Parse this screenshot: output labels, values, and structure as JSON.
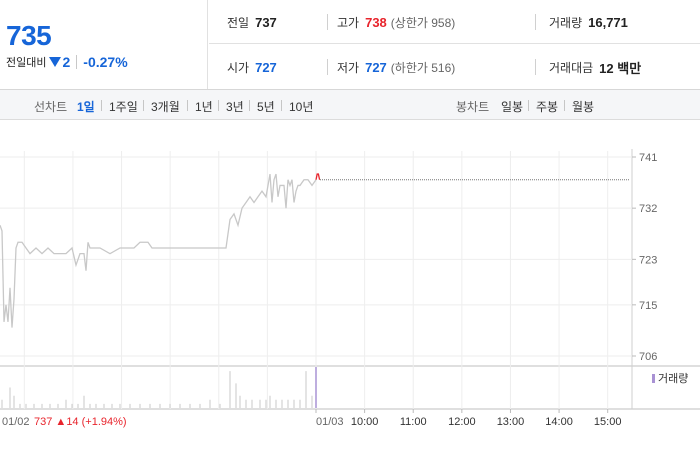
{
  "quote": {
    "price": "735",
    "change_label": "전일대비",
    "change_amount": "2",
    "change_percent": "-0.27%",
    "stats": {
      "prev_close": {
        "label": "전일",
        "value": "737"
      },
      "high": {
        "label": "고가",
        "value": "738",
        "sub": "(상한가 958)"
      },
      "volume": {
        "label": "거래량",
        "value": "16,771"
      },
      "open": {
        "label": "시가",
        "value": "727"
      },
      "low": {
        "label": "저가",
        "value": "727",
        "sub": "(하한가 516)"
      },
      "turnover": {
        "label": "거래대금",
        "value": "12 백만"
      }
    }
  },
  "toolbar": {
    "line_label": "선차트",
    "line_periods": [
      "1일",
      "1주일",
      "3개월",
      "1년",
      "3년",
      "5년",
      "10년"
    ],
    "active_period": "1일",
    "candle_label": "봉차트",
    "candle_periods": [
      "일봉",
      "주봉",
      "월봉"
    ]
  },
  "colors": {
    "up": "#e8242c",
    "down": "#1665d8",
    "line": "#c8c8c8",
    "volume": "#c8c8c8",
    "volume_last": "#a992d4"
  },
  "chart_data": {
    "type": "line",
    "y_ticks": [
      "741",
      "732",
      "723",
      "715",
      "706"
    ],
    "ylim": [
      706,
      741
    ],
    "x_ticks": [
      "01/03",
      "10:00",
      "11:00",
      "12:00",
      "13:00",
      "14:00",
      "15:00"
    ],
    "prev_day_label": "01/02",
    "prev_day_summary": {
      "close": "737",
      "arrow": "▲",
      "change": "14",
      "pct": "(+1.94%)"
    },
    "volume_legend": "거래량",
    "prev_day_series": [
      [
        0,
        729
      ],
      [
        2,
        728
      ],
      [
        4,
        712
      ],
      [
        6,
        715
      ],
      [
        8,
        712
      ],
      [
        10,
        718
      ],
      [
        12,
        711
      ],
      [
        14,
        716
      ],
      [
        16,
        725
      ],
      [
        18,
        726
      ],
      [
        22,
        726
      ],
      [
        26,
        725
      ],
      [
        30,
        724
      ],
      [
        36,
        725
      ],
      [
        42,
        724
      ],
      [
        48,
        725
      ],
      [
        54,
        724
      ],
      [
        60,
        724
      ],
      [
        66,
        724
      ],
      [
        72,
        725
      ],
      [
        76,
        722
      ],
      [
        80,
        724
      ],
      [
        84,
        724
      ],
      [
        86,
        721
      ],
      [
        88,
        726
      ],
      [
        90,
        725
      ],
      [
        100,
        725
      ],
      [
        110,
        724
      ],
      [
        120,
        725
      ],
      [
        134,
        725
      ],
      [
        140,
        726
      ],
      [
        148,
        726
      ],
      [
        152,
        725
      ],
      [
        160,
        725
      ],
      [
        180,
        725
      ],
      [
        200,
        725
      ],
      [
        210,
        725
      ],
      [
        220,
        725
      ],
      [
        226,
        725
      ],
      [
        230,
        730
      ],
      [
        234,
        731
      ],
      [
        238,
        729
      ],
      [
        242,
        732
      ],
      [
        246,
        733
      ],
      [
        250,
        734
      ],
      [
        254,
        733
      ],
      [
        258,
        734
      ],
      [
        262,
        735
      ],
      [
        266,
        734
      ],
      [
        270,
        738
      ],
      [
        272,
        733
      ],
      [
        274,
        737
      ],
      [
        276,
        738
      ],
      [
        278,
        734
      ],
      [
        280,
        736
      ],
      [
        284,
        736
      ],
      [
        286,
        732
      ],
      [
        288,
        737
      ],
      [
        290,
        736
      ],
      [
        292,
        737
      ],
      [
        294,
        733
      ],
      [
        296,
        735
      ],
      [
        298,
        736
      ],
      [
        300,
        736
      ],
      [
        304,
        737
      ],
      [
        308,
        737
      ],
      [
        312,
        736
      ],
      [
        316,
        737
      ]
    ],
    "today_series": [
      [
        0,
        737
      ],
      [
        1,
        738
      ],
      [
        2,
        738
      ],
      [
        3,
        737
      ]
    ],
    "prev_close_level": 737,
    "prev_day_volume": [
      [
        2,
        2
      ],
      [
        10,
        5
      ],
      [
        14,
        3
      ],
      [
        20,
        1
      ],
      [
        26,
        1
      ],
      [
        34,
        1
      ],
      [
        42,
        1
      ],
      [
        50,
        1
      ],
      [
        58,
        1
      ],
      [
        66,
        2
      ],
      [
        72,
        1
      ],
      [
        78,
        1
      ],
      [
        84,
        3
      ],
      [
        90,
        1
      ],
      [
        96,
        1
      ],
      [
        104,
        1
      ],
      [
        112,
        1
      ],
      [
        120,
        1
      ],
      [
        130,
        1
      ],
      [
        140,
        1
      ],
      [
        150,
        1
      ],
      [
        160,
        1
      ],
      [
        170,
        1
      ],
      [
        180,
        1
      ],
      [
        190,
        1
      ],
      [
        200,
        1
      ],
      [
        210,
        2
      ],
      [
        220,
        1
      ],
      [
        230,
        9
      ],
      [
        236,
        6
      ],
      [
        240,
        3
      ],
      [
        246,
        2
      ],
      [
        252,
        2
      ],
      [
        260,
        2
      ],
      [
        266,
        2
      ],
      [
        270,
        3
      ],
      [
        276,
        2
      ],
      [
        282,
        2
      ],
      [
        288,
        2
      ],
      [
        294,
        2
      ],
      [
        300,
        2
      ],
      [
        306,
        9
      ],
      [
        312,
        3
      ]
    ],
    "today_volume": [
      [
        0,
        10
      ]
    ]
  }
}
